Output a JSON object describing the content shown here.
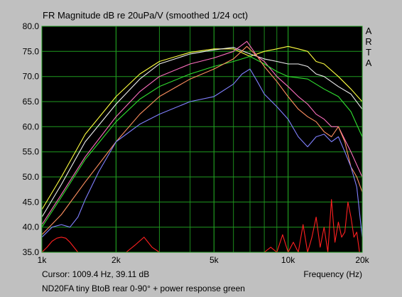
{
  "chart_data": {
    "type": "line",
    "title": "FR Magnitude dB re 20uPa/V (smoothed 1/24 oct)",
    "xlabel": "Frequency (Hz)",
    "x_scale": "log",
    "xlim": [
      1000,
      20000
    ],
    "ylim": [
      35.0,
      80.0
    ],
    "x_ticks": [
      1000,
      2000,
      5000,
      10000,
      20000
    ],
    "x_tick_labels": [
      "1k",
      "2k",
      "5k",
      "10k",
      "20k"
    ],
    "y_ticks": [
      35.0,
      40.0,
      45.0,
      50.0,
      55.0,
      60.0,
      65.0,
      70.0,
      75.0,
      80.0
    ],
    "y_tick_labels": [
      "35.0",
      "40.0",
      "45.0",
      "50.0",
      "55.0",
      "60.0",
      "65.0",
      "70.0",
      "75.0",
      "80.0"
    ],
    "grid": true,
    "background_color": "#000000",
    "grid_color": "#1f9a1f",
    "side_label": "ARTA",
    "cursor_text": "Cursor: 1009.4 Hz, 39.11 dB",
    "caption": "ND20FA tiny BtoB rear  0-90° + power response green",
    "series": [
      {
        "color": "#ffff40",
        "x": [
          1000,
          1200,
          1500,
          2000,
          2500,
          3000,
          4000,
          5000,
          6000,
          7000,
          8000,
          9000,
          10000,
          11000,
          12000,
          13000,
          14000,
          16000,
          18000,
          20000
        ],
        "y": [
          43.5,
          50,
          58.5,
          66,
          70.5,
          73,
          74.8,
          75.5,
          75.5,
          74,
          75,
          75.5,
          76,
          75.5,
          75,
          73,
          72.5,
          70,
          67.5,
          65
        ]
      },
      {
        "color": "#f0f0f0",
        "x": [
          1000,
          1200,
          1500,
          2000,
          2500,
          3000,
          4000,
          5000,
          6000,
          7000,
          8000,
          9000,
          10000,
          11000,
          12000,
          13000,
          14000,
          16000,
          18000,
          20000
        ],
        "y": [
          42,
          48.5,
          57,
          64.5,
          69.5,
          72.5,
          74.5,
          75.3,
          75.8,
          74.5,
          73.5,
          73,
          72.5,
          72.5,
          72,
          70.5,
          70,
          68,
          66.5,
          63.5
        ]
      },
      {
        "color": "#ff70c0",
        "x": [
          1000,
          1200,
          1500,
          2000,
          2500,
          3000,
          4000,
          5000,
          6000,
          6800,
          7500,
          8000,
          9000,
          10000,
          11000,
          12000,
          13000,
          14000,
          15000,
          16000,
          18000,
          20000
        ],
        "y": [
          40.5,
          46.5,
          54,
          62,
          67,
          70,
          72.5,
          73.7,
          75,
          77,
          74,
          73,
          70,
          68,
          66,
          64.5,
          62.5,
          61.5,
          60,
          60,
          55,
          50
        ]
      },
      {
        "color": "#30e030",
        "x": [
          1000,
          1200,
          1500,
          2000,
          2500,
          3000,
          4000,
          5000,
          6000,
          7000,
          8000,
          9000,
          10000,
          12000,
          14000,
          16000,
          18000,
          20000
        ],
        "y": [
          40,
          46,
          53.5,
          61,
          65.5,
          68,
          70.5,
          72,
          73,
          74,
          72.5,
          71,
          70,
          69.5,
          67.5,
          66,
          63,
          58
        ]
      },
      {
        "color": "#ff9060",
        "x": [
          1000,
          1200,
          1500,
          2000,
          2500,
          3000,
          4000,
          5000,
          6000,
          6800,
          7500,
          8000,
          9000,
          10000,
          11000,
          12000,
          13000,
          14000,
          15000,
          16000,
          17000,
          18000,
          19000,
          20000
        ],
        "y": [
          38.5,
          42.5,
          49,
          57,
          62.5,
          66,
          69.5,
          71.5,
          73.5,
          76,
          74,
          72,
          69,
          66,
          63.5,
          62,
          61,
          59,
          58,
          60,
          57,
          52,
          50,
          47
        ]
      },
      {
        "color": "#8080ff",
        "x": [
          1000,
          1100,
          1200,
          1300,
          1400,
          1500,
          1700,
          2000,
          2500,
          3000,
          4000,
          5000,
          6000,
          6500,
          7000,
          7500,
          8000,
          9000,
          10000,
          11000,
          12000,
          13000,
          14000,
          15000,
          16000,
          17000,
          18000,
          19000,
          20000
        ],
        "y": [
          38,
          40,
          40.5,
          40,
          42,
          45.5,
          51,
          57,
          60.5,
          62.5,
          65,
          66,
          68.5,
          70.5,
          71.5,
          69,
          66.5,
          64,
          61.5,
          58,
          56,
          58,
          58.5,
          57,
          58,
          55,
          52,
          48,
          38
        ]
      },
      {
        "color": "#ff2020",
        "x": [
          1000,
          1050,
          1100,
          1150,
          1200,
          1250,
          1300,
          1400,
          1500,
          1600,
          1700,
          1800,
          1900,
          2000,
          2200,
          2400,
          2600,
          2800,
          3000,
          3300,
          3600,
          4000,
          4500,
          5000,
          5500,
          6000,
          6500,
          7000,
          7500,
          8000,
          8500,
          9000,
          9500,
          10000,
          10500,
          11000,
          11500,
          12000,
          12500,
          13000,
          13500,
          14000,
          14500,
          15000,
          15500,
          16000,
          16500,
          17000,
          17500,
          18000,
          18500,
          19000,
          19500,
          20000
        ],
        "y": [
          35,
          36,
          37.2,
          37.8,
          38,
          37.8,
          37,
          35,
          35,
          35,
          35,
          35,
          35,
          35,
          35,
          36.5,
          38,
          36,
          35,
          35,
          35,
          35,
          35,
          35,
          35,
          35,
          35,
          35,
          35,
          35,
          36,
          35,
          38.5,
          35,
          37,
          35,
          40.5,
          35,
          38,
          42,
          36,
          40,
          35,
          45.5,
          37,
          41,
          38,
          39,
          45,
          42,
          38,
          39,
          35,
          35
        ]
      }
    ]
  }
}
